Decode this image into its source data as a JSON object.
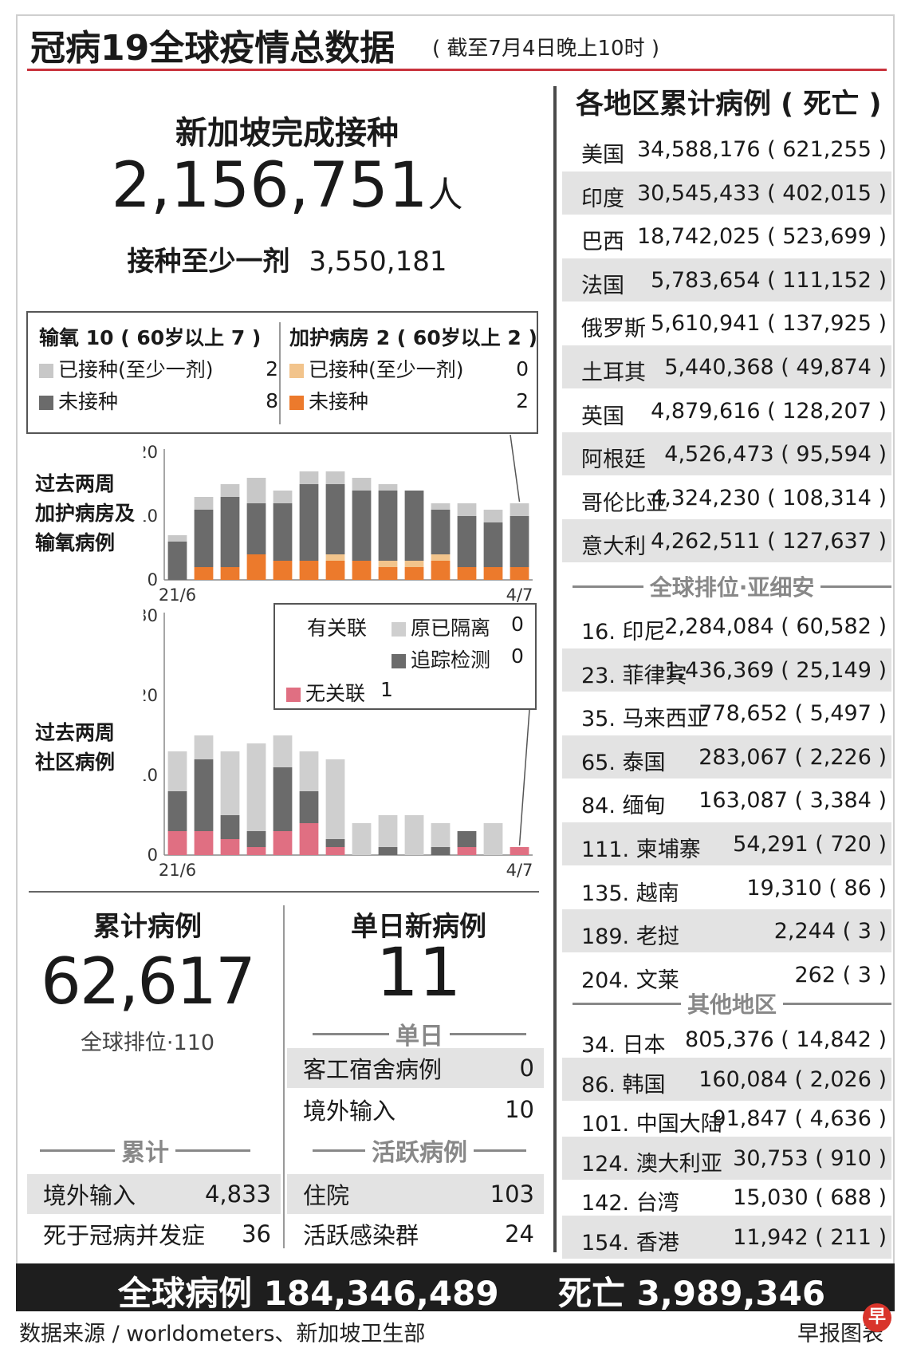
{
  "header": {
    "title": "冠病19全球疫情总数据",
    "subtitle": "( 截至7月4日晚上10时 )"
  },
  "vaccination": {
    "title": "新加坡完成接种",
    "completed": "2,156,751",
    "unit": "人",
    "atleast_label": "接种至少一剂",
    "atleast_value": "3,550,181"
  },
  "hospital_legend": {
    "oxygen_header": "输氧 10 ( 60岁以上 7 )",
    "oxygen_vaccinated_label": "已接种(至少一剂)",
    "oxygen_vaccinated_value": "2",
    "oxygen_unvaccinated_label": "未接种",
    "oxygen_unvaccinated_value": "8",
    "icu_header": "加护病房 2 ( 60岁以上 2 )",
    "icu_vaccinated_label": "已接种(至少一剂)",
    "icu_vaccinated_value": "0",
    "icu_unvaccinated_label": "未接种",
    "icu_unvaccinated_value": "2"
  },
  "community_legend": {
    "linked_label": "有关联",
    "quarantined_label": "原已隔离",
    "quarantined_value": "0",
    "traced_label": "追踪检测",
    "traced_value": "0",
    "unlinked_label": "无关联",
    "unlinked_value": "1"
  },
  "chart_labels": {
    "hosp_line1": "过去两周",
    "hosp_line2": "加护病房及",
    "hosp_line3": "输氧病例",
    "comm_line1": "过去两周",
    "comm_line2": "社区病例"
  },
  "colors": {
    "oxygen_vaccinated": "#c8c8c8",
    "oxygen_unvaccinated": "#6b6b6b",
    "icu_vaccinated": "#f2c48c",
    "icu_unvaccinated": "#ec7a2c",
    "quarantined": "#cfcfcf",
    "traced": "#6b6b6b",
    "unlinked": "#e06f82",
    "accent_red": "#c8323c"
  },
  "chart_data": [
    {
      "type": "bar",
      "stacked": true,
      "categories": [
        "21/6",
        "",
        "",
        "",
        "",
        "",
        "",
        "",
        "",
        "",
        "",
        "",
        "",
        "4/7"
      ],
      "xlabel": "",
      "ylabel": "",
      "ylim": [
        0,
        20
      ],
      "yticks": [
        0,
        10,
        20
      ],
      "grid": false,
      "series": [
        {
          "name": "加护病房 未接种",
          "color": "#ec7a2c",
          "values": [
            0,
            2,
            2,
            4,
            3,
            3,
            3,
            3,
            2,
            2,
            3,
            2,
            2,
            2
          ]
        },
        {
          "name": "加护病房 已接种(至少一剂)",
          "color": "#f2c48c",
          "values": [
            0,
            0,
            0,
            0,
            0,
            0,
            1,
            0,
            1,
            1,
            1,
            0,
            0,
            0
          ]
        },
        {
          "name": "输氧 未接种",
          "color": "#6b6b6b",
          "values": [
            6,
            9,
            11,
            8,
            9,
            12,
            11,
            11,
            11,
            11,
            7,
            8,
            7,
            8
          ]
        },
        {
          "name": "输氧 已接种(至少一剂)",
          "color": "#c8c8c8",
          "values": [
            1,
            2,
            2,
            4,
            2,
            2,
            2,
            2,
            1,
            0,
            1,
            2,
            2,
            2
          ]
        }
      ]
    },
    {
      "type": "bar",
      "stacked": true,
      "categories": [
        "21/6",
        "",
        "",
        "",
        "",
        "",
        "",
        "",
        "",
        "",
        "",
        "",
        "",
        "4/7"
      ],
      "xlabel": "",
      "ylabel": "",
      "ylim": [
        0,
        30
      ],
      "yticks": [
        0,
        10,
        20,
        30
      ],
      "grid": false,
      "series": [
        {
          "name": "无关联",
          "color": "#e06f82",
          "values": [
            3,
            3,
            2,
            1,
            3,
            4,
            1,
            0,
            0,
            0,
            0,
            1,
            0,
            1
          ]
        },
        {
          "name": "追踪检测",
          "color": "#6b6b6b",
          "values": [
            5,
            9,
            3,
            2,
            8,
            4,
            1,
            0,
            1,
            0,
            1,
            2,
            0,
            0
          ]
        },
        {
          "name": "原已隔离",
          "color": "#cfcfcf",
          "values": [
            5,
            3,
            8,
            11,
            4,
            5,
            10,
            4,
            4,
            5,
            3,
            0,
            4,
            0
          ]
        }
      ]
    }
  ],
  "cumulative": {
    "title": "累计病例",
    "value": "62,617",
    "rank": "全球排位·110",
    "section": "累计",
    "imported_label": "境外输入",
    "imported_value": "4,833",
    "deaths_label": "死于冠病并发症",
    "deaths_value": "36"
  },
  "daily": {
    "title": "单日新病例",
    "value": "11",
    "section": "单日",
    "dorm_label": "客工宿舍病例",
    "dorm_value": "0",
    "imported_label": "境外输入",
    "imported_value": "10",
    "active_section": "活跃病例",
    "hospital_label": "住院",
    "hospital_value": "103",
    "clusters_label": "活跃感染群",
    "clusters_value": "24"
  },
  "regions": {
    "title": "各地区累计病例 ( 死亡 )",
    "top": [
      {
        "name": "美国",
        "value": "34,588,176 ( 621,255 )"
      },
      {
        "name": "印度",
        "value": "30,545,433 ( 402,015 )"
      },
      {
        "name": "巴西",
        "value": "18,742,025 ( 523,699 )"
      },
      {
        "name": "法国",
        "value": "5,783,654 ( 111,152 )"
      },
      {
        "name": "俄罗斯",
        "value": "5,610,941 ( 137,925 )"
      },
      {
        "name": "土耳其",
        "value": "5,440,368 ( 49,874 )"
      },
      {
        "name": "英国",
        "value": "4,879,616 ( 128,207 )"
      },
      {
        "name": "阿根廷",
        "value": "4,526,473 ( 95,594 )"
      },
      {
        "name": "哥伦比亚",
        "value": "4,324,230 ( 108,314 )"
      },
      {
        "name": "意大利",
        "value": "4,262,511 ( 127,637 )"
      }
    ],
    "asia_header": "全球排位·亚细安",
    "asia": [
      {
        "name": "16. 印尼",
        "value": "2,284,084 ( 60,582 )"
      },
      {
        "name": "23. 菲律宾",
        "value": "1,436,369 ( 25,149 )"
      },
      {
        "name": "35. 马来西亚",
        "value": "778,652 ( 5,497 )"
      },
      {
        "name": "65. 泰国",
        "value": "283,067 ( 2,226 )"
      },
      {
        "name": "84. 缅甸",
        "value": "163,087 ( 3,384 )"
      },
      {
        "name": "111. 柬埔寨",
        "value": "54,291 ( 720 )"
      },
      {
        "name": "135. 越南",
        "value": "19,310 ( 86 )"
      },
      {
        "name": "189. 老挝",
        "value": "2,244 ( 3 )"
      },
      {
        "name": "204. 文莱",
        "value": "262 ( 3 )"
      }
    ],
    "other_header": "其他地区",
    "other": [
      {
        "name": "34. 日本",
        "value": "805,376 ( 14,842 )"
      },
      {
        "name": "86. 韩国",
        "value": "160,084 ( 2,026 )"
      },
      {
        "name": "101. 中国大陆",
        "value": "91,847 ( 4,636 )"
      },
      {
        "name": "124. 澳大利亚",
        "value": "30,753 ( 910 )"
      },
      {
        "name": "142. 台湾",
        "value": "15,030 ( 688 )"
      },
      {
        "name": "154. 香港",
        "value": "11,942 ( 211 )"
      }
    ]
  },
  "footer": {
    "global_cases": "全球病例 184,346,489",
    "global_deaths": "死亡 3,989,346",
    "source": "数据来源 / worldometers、新加坡卫生部",
    "credit": "早报图表",
    "logo_char": "早"
  }
}
